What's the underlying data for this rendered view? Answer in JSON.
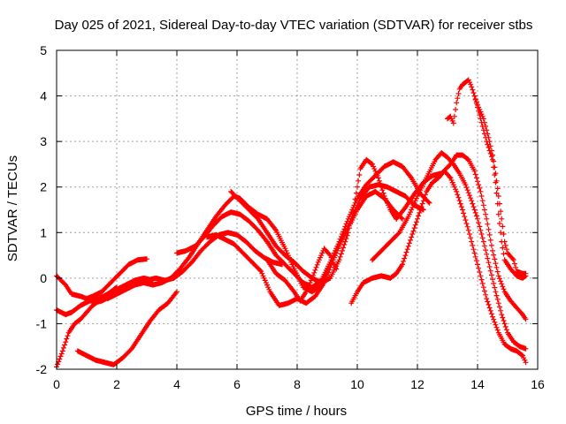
{
  "chart_data": {
    "type": "scatter",
    "title": "Day 025 of 2021, Sidereal Day-to-day VTEC variation (SDTVAR) for receiver stbs",
    "xlabel": "GPS time / hours",
    "ylabel": "SDTVAR / TECUs",
    "xlim": [
      0,
      16
    ],
    "ylim": [
      -2,
      5
    ],
    "xticks": [
      "0",
      "2",
      "4",
      "6",
      "8",
      "10",
      "12",
      "14",
      "16"
    ],
    "yticks": [
      "-2",
      "-1",
      "0",
      "1",
      "2",
      "3",
      "4",
      "5"
    ],
    "grid": true,
    "marker": "+",
    "color": "#ff0000",
    "series": [
      {
        "points": [
          [
            0.0,
            0.05
          ],
          [
            0.3,
            -0.15
          ],
          [
            0.5,
            -0.35
          ],
          [
            0.8,
            -0.4
          ],
          [
            1.0,
            -0.45
          ],
          [
            1.2,
            -0.4
          ],
          [
            1.5,
            -0.3
          ],
          [
            1.8,
            -0.1
          ],
          [
            2.1,
            0.1
          ],
          [
            2.4,
            0.3
          ],
          [
            2.7,
            0.4
          ],
          [
            3.0,
            0.42
          ]
        ]
      },
      {
        "points": [
          [
            0.0,
            -0.7
          ],
          [
            0.3,
            -0.8
          ],
          [
            0.5,
            -0.75
          ],
          [
            0.8,
            -0.6
          ],
          [
            1.1,
            -0.5
          ],
          [
            1.4,
            -0.45
          ],
          [
            1.7,
            -0.35
          ],
          [
            2.0,
            -0.25
          ],
          [
            2.3,
            -0.15
          ],
          [
            2.6,
            -0.05
          ],
          [
            2.9,
            0.0
          ],
          [
            3.2,
            -0.05
          ]
        ]
      },
      {
        "points": [
          [
            0.0,
            -1.95
          ],
          [
            0.2,
            -1.6
          ],
          [
            0.4,
            -1.2
          ],
          [
            0.6,
            -1.0
          ],
          [
            0.8,
            -0.9
          ],
          [
            1.0,
            -0.75
          ],
          [
            1.2,
            -0.6
          ],
          [
            1.4,
            -0.5
          ],
          [
            1.6,
            -0.4
          ],
          [
            1.8,
            -0.3
          ],
          [
            2.0,
            -0.2
          ]
        ]
      },
      {
        "points": [
          [
            0.7,
            -1.6
          ],
          [
            1.0,
            -1.7
          ],
          [
            1.3,
            -1.8
          ],
          [
            1.6,
            -1.85
          ],
          [
            1.9,
            -1.9
          ],
          [
            2.2,
            -1.75
          ],
          [
            2.5,
            -1.55
          ],
          [
            2.8,
            -1.25
          ],
          [
            3.1,
            -0.95
          ],
          [
            3.4,
            -0.7
          ],
          [
            3.7,
            -0.55
          ],
          [
            4.0,
            -0.3
          ]
        ]
      },
      {
        "points": [
          [
            1.2,
            -0.55
          ],
          [
            1.5,
            -0.5
          ],
          [
            1.8,
            -0.4
          ],
          [
            2.1,
            -0.3
          ],
          [
            2.4,
            -0.2
          ],
          [
            2.7,
            -0.1
          ],
          [
            3.0,
            -0.05
          ],
          [
            3.3,
            0.0
          ],
          [
            3.6,
            -0.05
          ],
          [
            3.9,
            0.0
          ],
          [
            4.2,
            0.15
          ],
          [
            4.5,
            0.35
          ],
          [
            4.8,
            0.6
          ],
          [
            5.1,
            0.8
          ],
          [
            5.4,
            0.95
          ],
          [
            5.7,
            1.0
          ],
          [
            6.0,
            0.95
          ],
          [
            6.3,
            0.8
          ],
          [
            6.6,
            0.6
          ],
          [
            6.9,
            0.45
          ],
          [
            7.2,
            0.35
          ],
          [
            7.5,
            0.3
          ]
        ]
      },
      {
        "points": [
          [
            1.7,
            -0.45
          ],
          [
            2.0,
            -0.35
          ],
          [
            2.3,
            -0.25
          ],
          [
            2.6,
            -0.15
          ],
          [
            2.9,
            -0.1
          ],
          [
            3.2,
            -0.15
          ],
          [
            3.5,
            -0.1
          ],
          [
            3.8,
            0.0
          ],
          [
            4.1,
            0.2
          ],
          [
            4.4,
            0.45
          ],
          [
            4.7,
            0.75
          ],
          [
            5.0,
            1.05
          ],
          [
            5.3,
            1.35
          ],
          [
            5.6,
            1.6
          ],
          [
            5.9,
            1.8
          ],
          [
            6.1,
            1.75
          ],
          [
            6.4,
            1.55
          ],
          [
            6.7,
            1.4
          ],
          [
            7.0,
            1.3
          ],
          [
            7.3,
            1.05
          ],
          [
            7.6,
            0.65
          ],
          [
            7.9,
            0.2
          ],
          [
            8.2,
            -0.2
          ],
          [
            8.5,
            -0.3
          ],
          [
            8.8,
            -0.15
          ],
          [
            9.1,
            0.3
          ],
          [
            9.4,
            0.75
          ],
          [
            9.7,
            1.1
          ],
          [
            10.0,
            1.5
          ],
          [
            10.3,
            1.8
          ],
          [
            10.6,
            1.9
          ],
          [
            10.9,
            1.75
          ],
          [
            11.2,
            1.5
          ],
          [
            11.5,
            1.3
          ]
        ]
      },
      {
        "points": [
          [
            4.0,
            0.55
          ],
          [
            4.3,
            0.6
          ],
          [
            4.6,
            0.7
          ],
          [
            4.9,
            0.9
          ],
          [
            5.2,
            1.15
          ],
          [
            5.5,
            1.35
          ],
          [
            5.8,
            1.45
          ],
          [
            6.1,
            1.4
          ],
          [
            6.4,
            1.25
          ],
          [
            6.7,
            1.05
          ],
          [
            7.0,
            0.8
          ],
          [
            7.3,
            0.5
          ],
          [
            7.6,
            0.3
          ],
          [
            7.9,
            0.1
          ],
          [
            8.2,
            -0.1
          ],
          [
            8.5,
            -0.2
          ],
          [
            8.8,
            -0.05
          ],
          [
            9.1,
            0.35
          ],
          [
            9.4,
            0.8
          ],
          [
            9.7,
            1.3
          ],
          [
            10.0,
            1.75
          ],
          [
            10.3,
            2.05
          ],
          [
            10.6,
            2.25
          ],
          [
            10.9,
            2.45
          ],
          [
            11.2,
            2.55
          ],
          [
            11.5,
            2.45
          ],
          [
            11.8,
            2.2
          ],
          [
            12.1,
            1.85
          ],
          [
            12.4,
            1.65
          ]
        ]
      },
      {
        "points": [
          [
            5.8,
            1.9
          ],
          [
            6.1,
            1.7
          ],
          [
            6.4,
            1.5
          ],
          [
            6.7,
            1.3
          ],
          [
            7.0,
            1.0
          ],
          [
            7.3,
            0.7
          ],
          [
            7.6,
            0.5
          ],
          [
            7.9,
            0.35
          ],
          [
            8.2,
            0.15
          ],
          [
            8.5,
            0.0
          ],
          [
            8.8,
            -0.1
          ],
          [
            9.1,
            0.0
          ],
          [
            9.4,
            0.4
          ],
          [
            9.7,
            1.0
          ],
          [
            9.9,
            1.6
          ],
          [
            10.1,
            2.4
          ],
          [
            10.3,
            2.6
          ],
          [
            10.5,
            2.5
          ],
          [
            10.7,
            2.2
          ],
          [
            10.9,
            1.8
          ],
          [
            11.1,
            1.5
          ],
          [
            11.3,
            1.3
          ]
        ]
      },
      {
        "points": [
          [
            5.0,
            0.9
          ],
          [
            5.3,
            0.95
          ],
          [
            5.6,
            0.85
          ],
          [
            5.9,
            0.75
          ],
          [
            6.2,
            0.55
          ],
          [
            6.5,
            0.35
          ],
          [
            6.8,
            0.15
          ],
          [
            7.1,
            -0.3
          ],
          [
            7.4,
            -0.6
          ],
          [
            7.7,
            -0.55
          ],
          [
            8.0,
            -0.45
          ],
          [
            8.3,
            -0.55
          ],
          [
            8.6,
            -0.4
          ],
          [
            8.9,
            -0.1
          ],
          [
            9.2,
            0.4
          ],
          [
            9.5,
            0.85
          ],
          [
            9.8,
            1.3
          ],
          [
            10.1,
            1.75
          ],
          [
            10.4,
            2.0
          ],
          [
            10.7,
            2.05
          ],
          [
            11.0,
            2.0
          ],
          [
            11.3,
            1.9
          ],
          [
            11.6,
            1.8
          ],
          [
            11.9,
            1.6
          ],
          [
            12.2,
            1.5
          ]
        ]
      },
      {
        "points": [
          [
            7.0,
            0.4
          ],
          [
            7.3,
            0.1
          ],
          [
            7.6,
            -0.05
          ],
          [
            7.9,
            -0.3
          ],
          [
            8.1,
            -0.5
          ],
          [
            8.3,
            -0.3
          ],
          [
            8.5,
            0.0
          ],
          [
            8.7,
            0.35
          ],
          [
            8.9,
            0.65
          ],
          [
            9.1,
            0.5
          ],
          [
            9.3,
            0.2
          ]
        ]
      },
      {
        "points": [
          [
            9.8,
            -0.55
          ],
          [
            10.0,
            -0.3
          ],
          [
            10.2,
            -0.1
          ],
          [
            10.5,
            0.0
          ],
          [
            10.8,
            0.05
          ],
          [
            11.1,
            0.0
          ],
          [
            11.3,
            0.1
          ],
          [
            11.5,
            0.3
          ],
          [
            11.7,
            0.7
          ],
          [
            11.9,
            1.1
          ],
          [
            12.1,
            1.5
          ],
          [
            12.3,
            1.9
          ],
          [
            12.5,
            2.1
          ],
          [
            12.7,
            2.2
          ],
          [
            12.9,
            2.35
          ],
          [
            13.1,
            2.2
          ],
          [
            13.3,
            1.9
          ],
          [
            13.5,
            1.5
          ],
          [
            13.7,
            1.05
          ],
          [
            13.9,
            0.55
          ],
          [
            14.1,
            0.05
          ],
          [
            14.3,
            -0.45
          ],
          [
            14.5,
            -0.85
          ],
          [
            14.7,
            -1.2
          ],
          [
            14.9,
            -1.45
          ],
          [
            15.1,
            -1.55
          ],
          [
            15.3,
            -1.6
          ],
          [
            15.5,
            -1.7
          ],
          [
            15.6,
            -1.85
          ]
        ]
      },
      {
        "points": [
          [
            10.5,
            0.4
          ],
          [
            10.8,
            0.6
          ],
          [
            11.1,
            0.8
          ],
          [
            11.4,
            1.0
          ],
          [
            11.7,
            1.35
          ],
          [
            12.0,
            1.8
          ],
          [
            12.3,
            2.2
          ],
          [
            12.6,
            2.6
          ],
          [
            12.8,
            2.75
          ],
          [
            13.0,
            2.65
          ],
          [
            13.2,
            2.5
          ],
          [
            13.4,
            2.3
          ],
          [
            13.6,
            2.05
          ],
          [
            13.8,
            1.7
          ],
          [
            14.0,
            1.3
          ],
          [
            14.2,
            0.8
          ],
          [
            14.4,
            0.25
          ],
          [
            14.6,
            -0.3
          ],
          [
            14.8,
            -0.8
          ],
          [
            15.0,
            -1.2
          ],
          [
            15.2,
            -1.4
          ],
          [
            15.4,
            -1.5
          ],
          [
            15.6,
            -1.55
          ]
        ]
      },
      {
        "points": [
          [
            11.3,
            1.3
          ],
          [
            11.6,
            1.55
          ],
          [
            11.9,
            1.85
          ],
          [
            12.2,
            2.1
          ],
          [
            12.5,
            2.25
          ],
          [
            12.8,
            2.3
          ],
          [
            13.1,
            2.5
          ],
          [
            13.3,
            2.7
          ],
          [
            13.5,
            2.7
          ],
          [
            13.7,
            2.6
          ],
          [
            13.9,
            2.35
          ],
          [
            14.1,
            1.9
          ],
          [
            14.3,
            1.3
          ],
          [
            14.5,
            0.6
          ],
          [
            14.7,
            0.05
          ],
          [
            14.9,
            -0.3
          ],
          [
            15.1,
            -0.5
          ],
          [
            15.3,
            -0.65
          ],
          [
            15.5,
            -0.8
          ],
          [
            15.6,
            -0.9
          ]
        ]
      },
      {
        "points": [
          [
            13.0,
            3.5
          ],
          [
            13.1,
            3.55
          ],
          [
            13.2,
            3.4
          ],
          [
            13.3,
            3.85
          ],
          [
            13.4,
            4.15
          ],
          [
            13.5,
            4.25
          ],
          [
            13.6,
            4.3
          ],
          [
            13.7,
            4.35
          ],
          [
            13.8,
            4.2
          ],
          [
            13.9,
            4.0
          ],
          [
            14.0,
            3.8
          ],
          [
            14.2,
            3.5
          ],
          [
            14.4,
            3.0
          ],
          [
            14.5,
            2.7
          ],
          [
            14.6,
            2.3
          ],
          [
            14.7,
            1.8
          ],
          [
            14.8,
            1.3
          ],
          [
            14.9,
            0.8
          ],
          [
            15.0,
            0.55
          ],
          [
            15.2,
            0.4
          ],
          [
            15.3,
            0.15
          ],
          [
            15.5,
            0.1
          ],
          [
            15.6,
            0.1
          ]
        ]
      },
      {
        "points": [
          [
            13.9,
            4.0
          ],
          [
            14.1,
            3.5
          ],
          [
            14.3,
            3.0
          ],
          [
            14.5,
            2.6
          ],
          [
            14.6,
            2.1
          ],
          [
            14.7,
            1.4
          ],
          [
            14.8,
            0.8
          ],
          [
            14.9,
            0.4
          ],
          [
            15.1,
            0.2
          ],
          [
            15.3,
            0.05
          ],
          [
            15.5,
            0.0
          ],
          [
            15.6,
            0.05
          ]
        ]
      }
    ]
  }
}
